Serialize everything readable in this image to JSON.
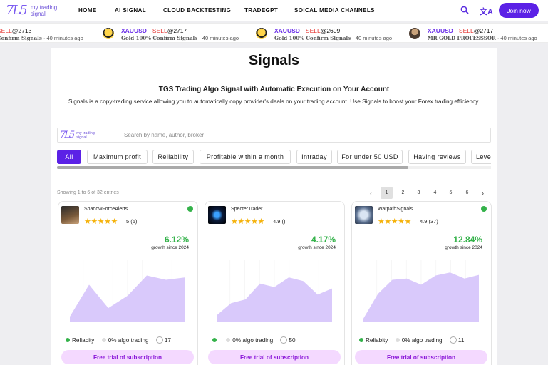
{
  "header": {
    "logo_mark": "7L5",
    "logo_line1": "my trading",
    "logo_line2": "signal",
    "nav": [
      "HOME",
      "AI SIGNAL",
      "CLOUD BACKTESTING",
      "TRADEGPT",
      "SOICAL MEDIA CHANNELS"
    ],
    "lang_icon": "translate-icon",
    "join_label": "Join now"
  },
  "ticker": [
    {
      "pair": "",
      "side": "SELL",
      "price": "@2713",
      "name": "Confirm Signals",
      "time": " · 40 minutes ago"
    },
    {
      "pair": "XAUUSD",
      "side": "SELL",
      "price": "@2717",
      "name": "Gold 100% Confirm Signals",
      "time": " · 40 minutes ago"
    },
    {
      "pair": "XAUUSD",
      "side": "SELL",
      "price": "@2609",
      "name": "Gold 100% Confirm Signals",
      "time": " · 40 minutes ago"
    },
    {
      "pair": "XAUUSD",
      "side": "SELL",
      "price": "@2717",
      "name": "MR GOLD PROFESSSOR",
      "time": " · 40 minutes ago"
    }
  ],
  "main": {
    "title": "Signals",
    "subtitle": "TGS Trading Algo Signal with Automatic Execution on Your Account",
    "description": "Signals is a copy-trading service allowing you to automatically copy provider's deals on your trading account. Use Signals to boost your Forex trading efficiency.",
    "search_placeholder": "Search by name, author, broker",
    "search_logo_line1": "my trading",
    "search_logo_line2": "signal",
    "chips": [
      "All",
      "Maximum profit",
      "Reliability",
      "Profitable within a month",
      "Intraday",
      "For under 50 USD",
      "Having reviews",
      "Leve"
    ],
    "showing": "Showing 1 to 6 of 32 entries",
    "pages": [
      "1",
      "2",
      "3",
      "4",
      "5",
      "6"
    ],
    "prev": "‹",
    "next": "›"
  },
  "cards": [
    {
      "name": "ShadowForceAlerts",
      "stars": "★★★★★",
      "rating": "5 (5)",
      "growth": "6.12%",
      "growth_label": "growth since 2024",
      "reliability": "Reliabity",
      "algo": "0% algo trading",
      "subscribers": "17",
      "trial": "Free trial of subscription",
      "verified": true,
      "series": [
        8,
        60,
        22,
        42,
        75,
        68,
        72
      ]
    },
    {
      "name": "SpecterTrader",
      "stars": "★★★★★",
      "rating": "4.9 ()",
      "growth": "4.17%",
      "growth_label": "growth since 2024",
      "reliability": "",
      "algo": "0% algo trading",
      "subscribers": "50",
      "trial": "Free trial of subscription",
      "verified": false,
      "series": [
        10,
        30,
        36,
        62,
        56,
        72,
        66,
        44,
        54
      ]
    },
    {
      "name": "WarpathSignals",
      "stars": "★★★★★",
      "rating": "4.9 (37)",
      "growth": "12.84%",
      "growth_label": "growth since 2024",
      "reliability": "Reliabity",
      "algo": "0% algo trading",
      "subscribers": "11",
      "trial": "Free trial of subscription",
      "verified": true,
      "series": [
        5,
        45,
        68,
        70,
        60,
        75,
        80,
        70,
        76
      ]
    }
  ],
  "colors": {
    "accent": "#5b21e6",
    "growth": "#34b24a",
    "sell": "#e53935",
    "chart_fill": "#d9c9fb"
  },
  "icons": {
    "search": "search-icon",
    "translate": "translate-icon",
    "verified": "verified-check-icon",
    "subscribers": "globe-icon"
  }
}
